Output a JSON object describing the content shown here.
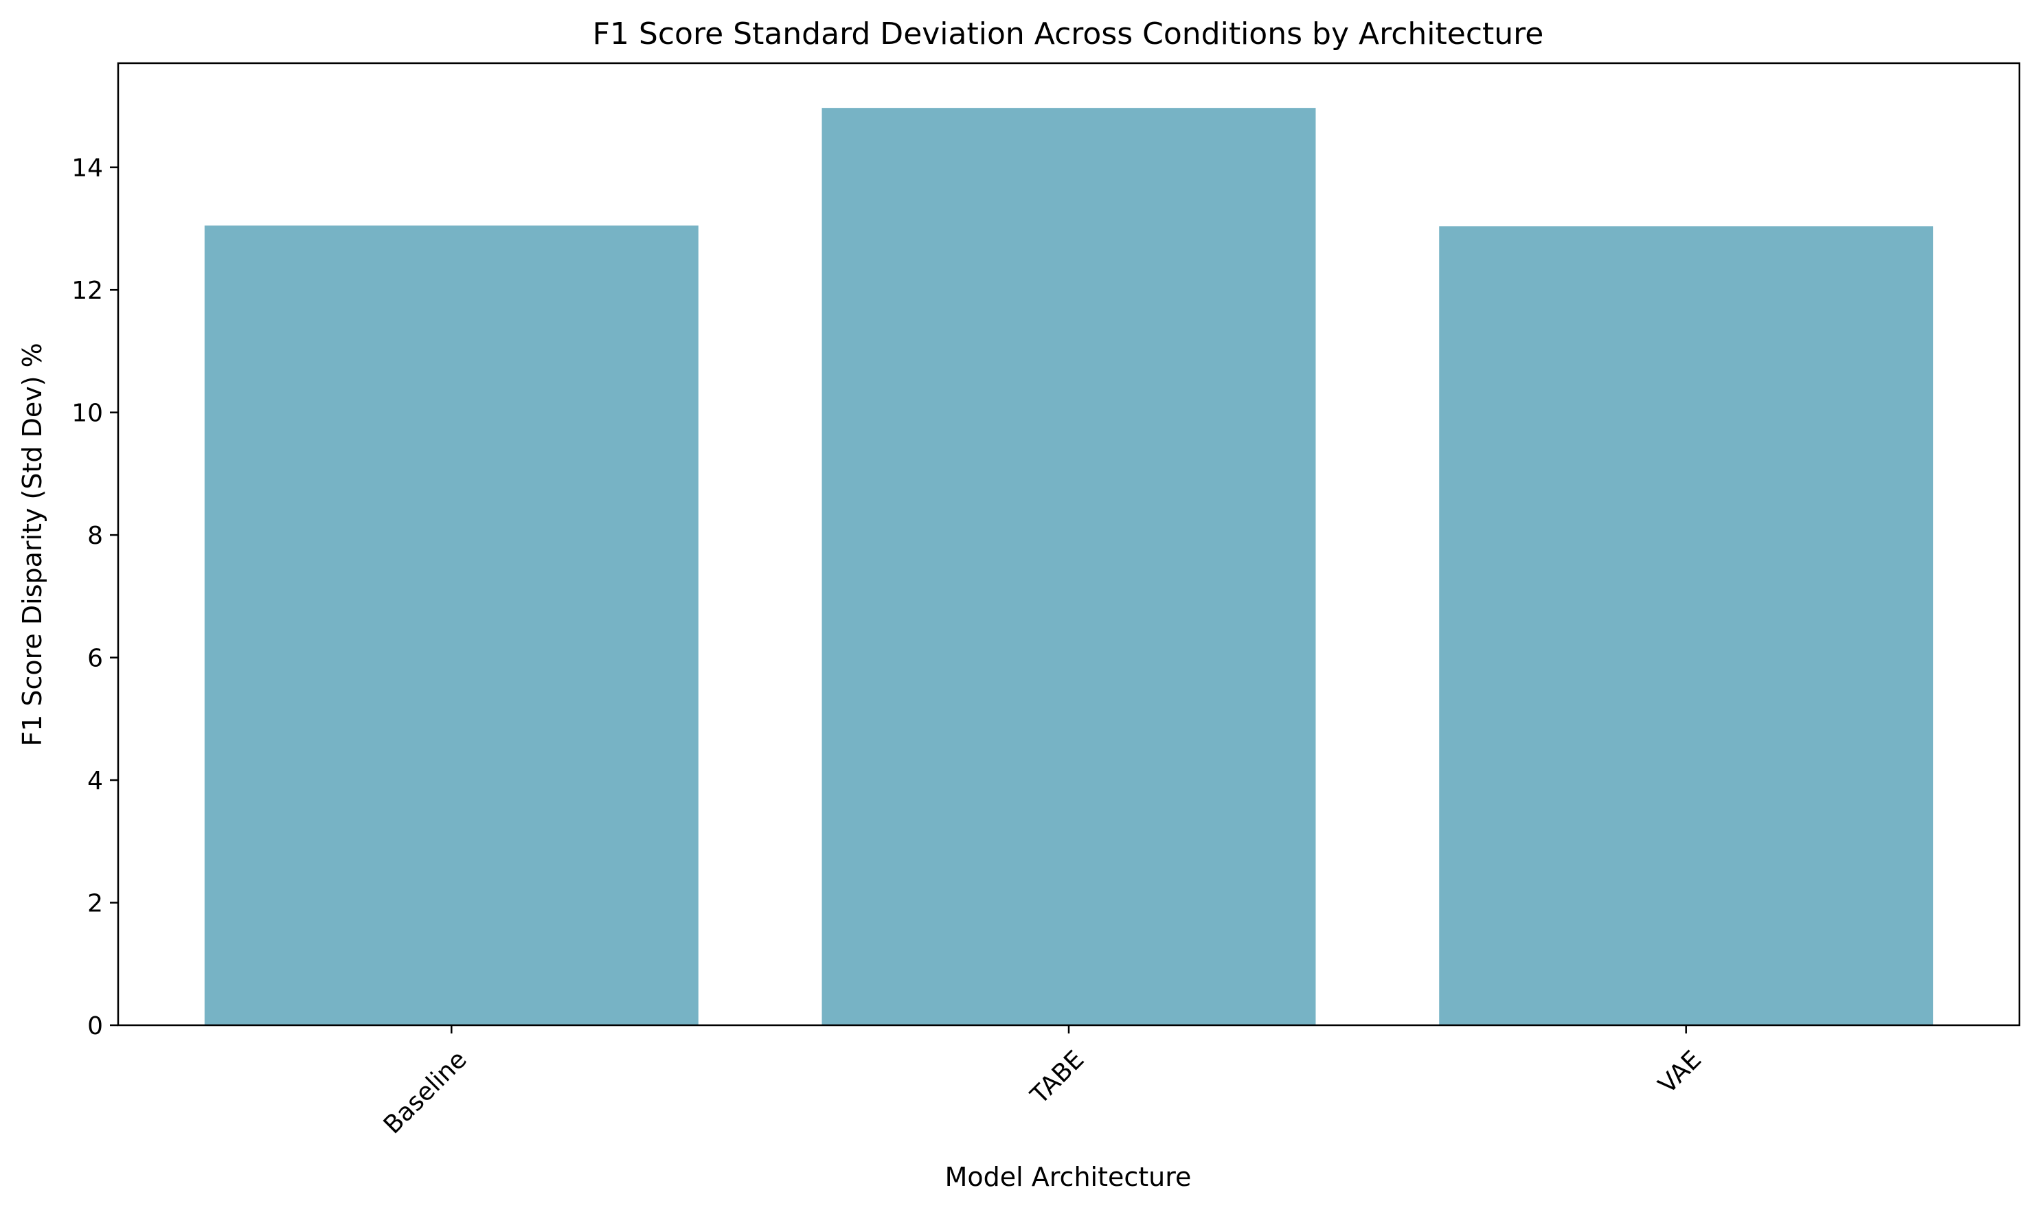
{
  "chart_data": {
    "type": "bar",
    "title": "F1 Score Standard Deviation Across Conditions by Architecture",
    "xlabel": "Model Architecture",
    "ylabel": "F1 Score Disparity (Std Dev) %",
    "categories": [
      "Baseline",
      "TABE",
      "VAE"
    ],
    "values": [
      13.05,
      14.97,
      13.04
    ],
    "ylim": [
      0,
      15.7
    ],
    "yticks": [
      0,
      2,
      4,
      6,
      8,
      10,
      12,
      14
    ],
    "bar_color": "#77b3c5",
    "grid": false,
    "legend": "none"
  }
}
